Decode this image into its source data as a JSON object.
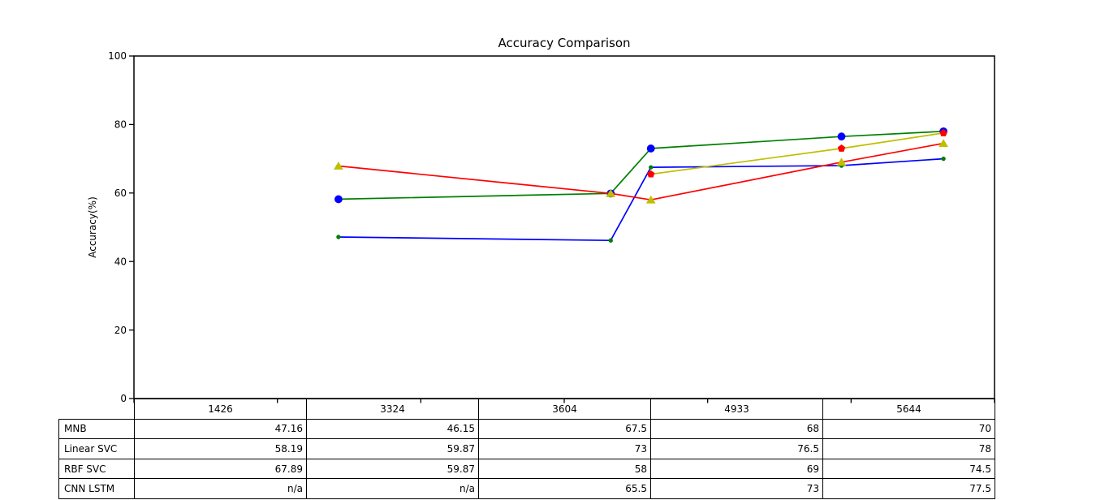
{
  "figure": {
    "title": "Accuracy Comparison",
    "ylabel": "Accuracy(%)",
    "background_color": "#ffffff",
    "text_color": "#000000",
    "axis_color": "#000000"
  },
  "chart_data": {
    "type": "line",
    "title": "Accuracy Comparison",
    "xlabel": "",
    "ylabel": "Accuracy(%)",
    "x": [
      1426,
      3324,
      3604,
      4933,
      5644
    ],
    "xlim": [
      0,
      6000
    ],
    "ylim": [
      0,
      100
    ],
    "yticks": [
      0,
      20,
      40,
      60,
      80,
      100
    ],
    "ytick_labels": [
      "0",
      "20",
      "40",
      "60",
      "80",
      "100"
    ],
    "xtick_marks_unlabeled": [
      0,
      1000,
      2000,
      3000,
      4000,
      5000,
      6000
    ],
    "grid": false,
    "legend_position": "none (series identified by table row labels below chart)",
    "series": [
      {
        "name": "MNB",
        "values": [
          47.16,
          46.15,
          67.5,
          68,
          70
        ],
        "line_color": "#0000ff",
        "marker": "dot",
        "marker_color": "#008000"
      },
      {
        "name": "Linear SVC",
        "values": [
          58.19,
          59.87,
          73,
          76.5,
          78
        ],
        "line_color": "#008000",
        "marker": "circle",
        "marker_color": "#0000ff"
      },
      {
        "name": "RBF SVC",
        "values": [
          67.89,
          59.87,
          58,
          69,
          74.5
        ],
        "line_color": "#ff0000",
        "marker": "triangle-up",
        "marker_color": "#bfbf00"
      },
      {
        "name": "CNN LSTM",
        "values": [
          null,
          null,
          65.5,
          73,
          77.5
        ],
        "line_color": "#bfbf00",
        "marker": "pentagon",
        "marker_color": "#ff0000"
      }
    ]
  },
  "table": {
    "column_headers": [
      "1426",
      "3324",
      "3604",
      "4933",
      "5644"
    ],
    "rows": [
      {
        "label": "MNB",
        "values": [
          "47.16",
          "46.15",
          "67.5",
          "68",
          "70"
        ]
      },
      {
        "label": "Linear SVC",
        "values": [
          "58.19",
          "59.87",
          "73",
          "76.5",
          "78"
        ]
      },
      {
        "label": "RBF SVC",
        "values": [
          "67.89",
          "59.87",
          "58",
          "69",
          "74.5"
        ]
      },
      {
        "label": "CNN LSTM",
        "values": [
          "n/a",
          "n/a",
          "65.5",
          "73",
          "77.5"
        ]
      }
    ]
  }
}
